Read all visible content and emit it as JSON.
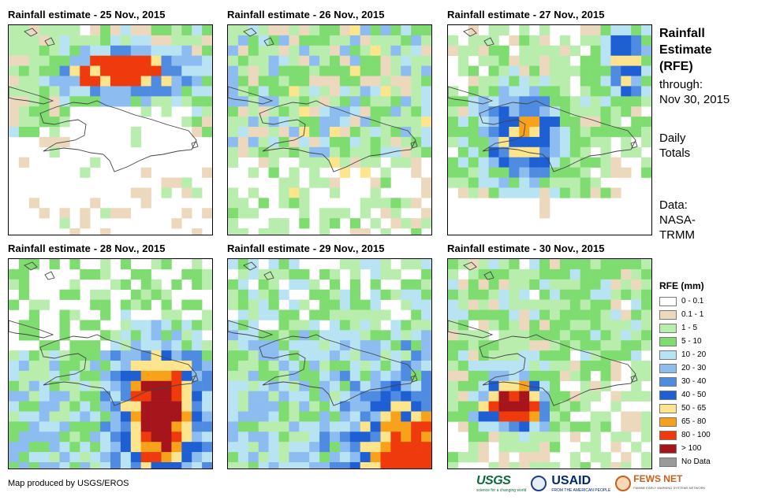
{
  "panels": [
    {
      "title": "Rainfall estimate - 25 Nov., 2015",
      "seed": 25,
      "intensity": 0
    },
    {
      "title": "Rainfall estimate - 26 Nov., 2015",
      "seed": 26,
      "intensity": 1
    },
    {
      "title": "Rainfall estimate - 27 Nov., 2015",
      "seed": 27,
      "intensity": 2
    },
    {
      "title": "Rainfall estimate - 28 Nov., 2015",
      "seed": 28,
      "intensity": 3
    },
    {
      "title": "Rainfall estimate - 29 Nov., 2015",
      "seed": 29,
      "intensity": 4
    },
    {
      "title": "Rainfall estimate - 30 Nov., 2015",
      "seed": 30,
      "intensity": 5
    }
  ],
  "side": {
    "heading": [
      "Rainfall",
      "Estimate",
      "(RFE)"
    ],
    "through_label": "through:",
    "through_date": "Nov 30, 2015",
    "totals": [
      "Daily",
      "Totals"
    ],
    "data_label": "Data:",
    "data_source": [
      "NASA-",
      "TRMM"
    ]
  },
  "legend": {
    "title": "RFE (mm)",
    "items": [
      {
        "label": "0 - 0.1",
        "color": "#ffffff"
      },
      {
        "label": "0.1 - 1",
        "color": "#ecd9bd"
      },
      {
        "label": "1 - 5",
        "color": "#b9edae"
      },
      {
        "label": "5 - 10",
        "color": "#7fdc70"
      },
      {
        "label": "10 - 20",
        "color": "#b8e3f3"
      },
      {
        "label": "20 - 30",
        "color": "#8cbcf0"
      },
      {
        "label": "30 - 40",
        "color": "#4f8be0"
      },
      {
        "label": "40 - 50",
        "color": "#1f5fd4"
      },
      {
        "label": "50 - 65",
        "color": "#fce58c"
      },
      {
        "label": "65 - 80",
        "color": "#f7a21a"
      },
      {
        "label": "80 - 100",
        "color": "#ee3a0c"
      },
      {
        "label": "> 100",
        "color": "#a5151b"
      },
      {
        "label": "No Data",
        "color": "#9a9a9a"
      }
    ]
  },
  "footer": {
    "credit": "Map produced by USGS/EROS",
    "logos": {
      "usgs": "USGS",
      "usgs_tag": "science for a changing world",
      "usaid": "USAID",
      "usaid_tag": "FROM THE AMERICAN PEOPLE",
      "fews": "FEWS NET",
      "fews_tag": "FAMINE EARLY WARNING SYSTEMS NETWORK"
    }
  }
}
